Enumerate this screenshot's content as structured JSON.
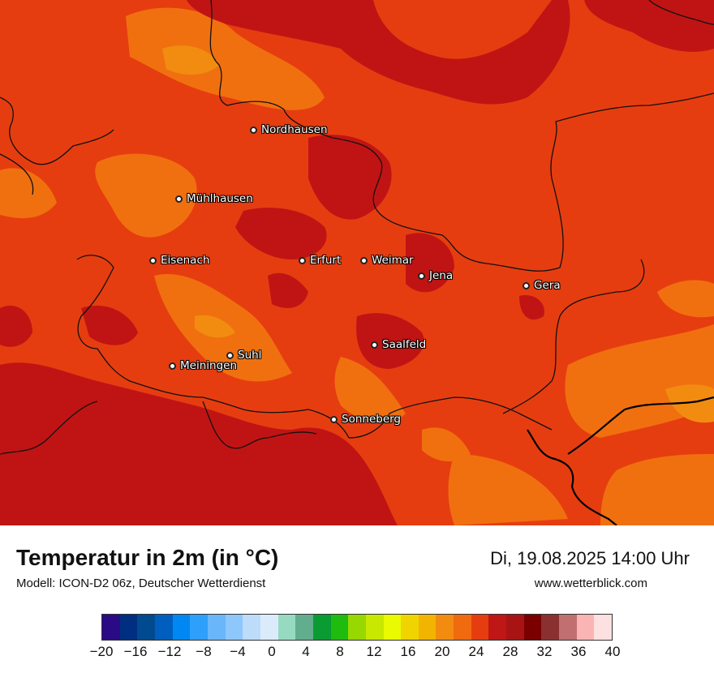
{
  "title": "Temperatur in 2m (in °C)",
  "model": "Modell: ICON-D2 06z, Deutscher Wetterdienst",
  "datetime": "Di, 19.08.2025 14:00 Uhr",
  "website": "www.wetterblick.com",
  "cities": [
    {
      "id": "nordhausen",
      "name": "Nordhausen"
    },
    {
      "id": "muehlhausen",
      "name": "Mühlhausen"
    },
    {
      "id": "eisenach",
      "name": "Eisenach"
    },
    {
      "id": "erfurt",
      "name": "Erfurt"
    },
    {
      "id": "weimar",
      "name": "Weimar"
    },
    {
      "id": "jena",
      "name": "Jena"
    },
    {
      "id": "gera",
      "name": "Gera"
    },
    {
      "id": "saalfeld",
      "name": "Saalfeld"
    },
    {
      "id": "suhl",
      "name": "Suhl"
    },
    {
      "id": "meiningen",
      "name": "Meiningen"
    },
    {
      "id": "sonneberg",
      "name": "Sonneberg"
    }
  ],
  "colorbar": {
    "colors": [
      "#2a0a85",
      "#002e80",
      "#004a8f",
      "#005fbe",
      "#0087f2",
      "#2ea0fa",
      "#6ab6fb",
      "#8ec7fb",
      "#bcdcfa",
      "#dcebfb",
      "#96dac2",
      "#63ad8f",
      "#0a9c32",
      "#1fbb0f",
      "#96d800",
      "#c8e800",
      "#eafa00",
      "#f0d400",
      "#f2b400",
      "#f28c10",
      "#f06a10",
      "#e63d10",
      "#bf1616",
      "#a81414",
      "#7a0000",
      "#8a3030",
      "#c07070",
      "#fbb4b4",
      "#fde0e0"
    ],
    "ticks": [
      "−20",
      "−16",
      "−12",
      "−8",
      "−4",
      "0",
      "4",
      "8",
      "12",
      "16",
      "20",
      "24",
      "28",
      "32",
      "36",
      "40"
    ],
    "min": -20,
    "max": 40
  },
  "field_colors": {
    "base": "#e63d10",
    "warm": "#c01414",
    "cool": "#f07010",
    "cooler": "#f28c10"
  }
}
